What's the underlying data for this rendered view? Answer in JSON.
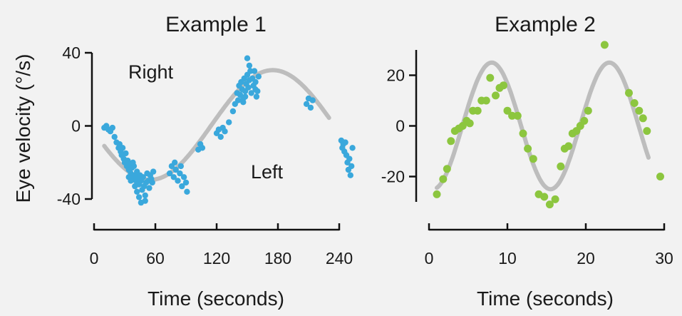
{
  "ylabel": "Eye velocity (°/s)",
  "annotations": {
    "right": "Right",
    "left": "Left"
  },
  "chart_data": [
    {
      "type": "scatter",
      "title": "Example 1",
      "xlabel": "Time (seconds)",
      "ylabel": "Eye velocity (°/s)",
      "xlim": [
        0,
        240
      ],
      "ylim": [
        -40,
        40
      ],
      "xticks": [
        0,
        60,
        120,
        180,
        240
      ],
      "yticks": [
        -40,
        0,
        40
      ],
      "point_color": "#3aa8dc",
      "fit_color": "#bdbdbd",
      "points": [
        [
          10,
          -1
        ],
        [
          12,
          0
        ],
        [
          14,
          -2
        ],
        [
          16,
          -3
        ],
        [
          18,
          -1
        ],
        [
          20,
          -6
        ],
        [
          22,
          -9
        ],
        [
          24,
          -12
        ],
        [
          25,
          -10
        ],
        [
          26,
          -14
        ],
        [
          27,
          -16
        ],
        [
          28,
          -12
        ],
        [
          29,
          -18
        ],
        [
          30,
          -20
        ],
        [
          31,
          -15
        ],
        [
          32,
          -22
        ],
        [
          33,
          -19
        ],
        [
          34,
          -24
        ],
        [
          35,
          -21
        ],
        [
          36,
          -26
        ],
        [
          37,
          -23
        ],
        [
          38,
          -28
        ],
        [
          39,
          -22
        ],
        [
          40,
          -27
        ],
        [
          41,
          -30
        ],
        [
          42,
          -25
        ],
        [
          43,
          -29
        ],
        [
          44,
          -32
        ],
        [
          45,
          -27
        ],
        [
          46,
          -30
        ],
        [
          47,
          -35
        ],
        [
          48,
          -28
        ],
        [
          49,
          -33
        ],
        [
          50,
          -38
        ],
        [
          51,
          -31
        ],
        [
          52,
          -26
        ],
        [
          53,
          -30
        ],
        [
          54,
          -34
        ],
        [
          55,
          -27
        ],
        [
          56,
          -29
        ],
        [
          57,
          -31
        ],
        [
          58,
          -25
        ],
        [
          46,
          -42
        ],
        [
          50,
          -41
        ],
        [
          44,
          -39
        ],
        [
          42,
          -36
        ],
        [
          40,
          -33
        ],
        [
          36,
          -30
        ],
        [
          34,
          -28
        ],
        [
          38,
          -20
        ],
        [
          74,
          -26
        ],
        [
          76,
          -22
        ],
        [
          78,
          -28
        ],
        [
          80,
          -24
        ],
        [
          82,
          -30
        ],
        [
          84,
          -26
        ],
        [
          86,
          -33
        ],
        [
          88,
          -28
        ],
        [
          90,
          -31
        ],
        [
          91,
          -36
        ],
        [
          85,
          -22
        ],
        [
          79,
          -20
        ],
        [
          102,
          -13
        ],
        [
          104,
          -10
        ],
        [
          106,
          -12
        ],
        [
          120,
          -4
        ],
        [
          122,
          -2
        ],
        [
          124,
          -6
        ],
        [
          126,
          -1
        ],
        [
          128,
          -3
        ],
        [
          132,
          2
        ],
        [
          136,
          8
        ],
        [
          138,
          12
        ],
        [
          140,
          18
        ],
        [
          141,
          14
        ],
        [
          142,
          22
        ],
        [
          143,
          17
        ],
        [
          144,
          24
        ],
        [
          145,
          20
        ],
        [
          146,
          15
        ],
        [
          147,
          26
        ],
        [
          148,
          19
        ],
        [
          149,
          23
        ],
        [
          150,
          28
        ],
        [
          151,
          21
        ],
        [
          152,
          25
        ],
        [
          153,
          30
        ],
        [
          154,
          18
        ],
        [
          155,
          26
        ],
        [
          156,
          22
        ],
        [
          157,
          30
        ],
        [
          158,
          24
        ],
        [
          159,
          16
        ],
        [
          160,
          19
        ],
        [
          161,
          27
        ],
        [
          150,
          37
        ],
        [
          152,
          33
        ],
        [
          158,
          20
        ],
        [
          146,
          13
        ],
        [
          148,
          16
        ],
        [
          208,
          12
        ],
        [
          210,
          15
        ],
        [
          212,
          10
        ],
        [
          214,
          14
        ],
        [
          242,
          -8
        ],
        [
          243,
          -12
        ],
        [
          244,
          -10
        ],
        [
          245,
          -14
        ],
        [
          246,
          -9
        ],
        [
          247,
          -16
        ],
        [
          248,
          -20
        ],
        [
          249,
          -24
        ],
        [
          250,
          -18
        ],
        [
          251,
          -27
        ],
        [
          252,
          -22
        ],
        [
          253,
          -12
        ]
      ],
      "fit_range": [
        10,
        230
      ]
    },
    {
      "type": "scatter",
      "title": "Example 2",
      "xlabel": "Time (seconds)",
      "ylabel": "",
      "xlim": [
        0,
        30
      ],
      "ylim": [
        -30,
        30
      ],
      "xticks": [
        0,
        10,
        20,
        30
      ],
      "yticks": [
        -20,
        0,
        20
      ],
      "point_color": "#8cc63f",
      "fit_color": "#bdbdbd",
      "points": [
        [
          1.0,
          -27
        ],
        [
          1.8,
          -21
        ],
        [
          2.3,
          -17
        ],
        [
          2.8,
          -6
        ],
        [
          3.3,
          -2
        ],
        [
          3.8,
          -1
        ],
        [
          4.3,
          0
        ],
        [
          4.8,
          2
        ],
        [
          5.2,
          1
        ],
        [
          5.6,
          6
        ],
        [
          6.2,
          6
        ],
        [
          6.7,
          10
        ],
        [
          7.3,
          10
        ],
        [
          7.8,
          19
        ],
        [
          8.5,
          12
        ],
        [
          9.0,
          15
        ],
        [
          9.5,
          16
        ],
        [
          10.0,
          6
        ],
        [
          10.6,
          4
        ],
        [
          11.3,
          4
        ],
        [
          12.0,
          -3
        ],
        [
          12.6,
          -9
        ],
        [
          13.3,
          -13
        ],
        [
          14.0,
          -27
        ],
        [
          14.7,
          -28
        ],
        [
          15.4,
          -31
        ],
        [
          16.1,
          -29
        ],
        [
          16.8,
          -16
        ],
        [
          17.3,
          -9
        ],
        [
          17.8,
          -8
        ],
        [
          18.3,
          -3
        ],
        [
          18.8,
          -2
        ],
        [
          19.3,
          0
        ],
        [
          19.8,
          2
        ],
        [
          20.3,
          6
        ],
        [
          22.4,
          32
        ],
        [
          25.5,
          13
        ],
        [
          26.2,
          9
        ],
        [
          26.8,
          6
        ],
        [
          27.3,
          3
        ],
        [
          27.8,
          -2
        ],
        [
          29.5,
          -20
        ]
      ],
      "fit_range": [
        1,
        28
      ]
    }
  ]
}
